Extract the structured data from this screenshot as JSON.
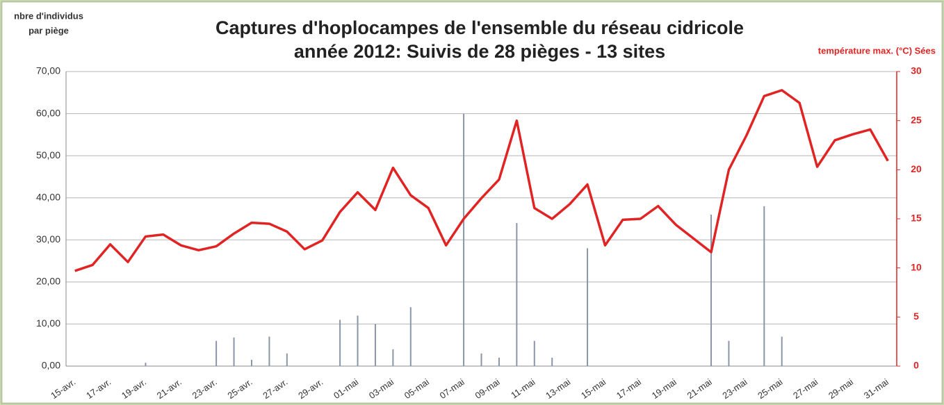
{
  "chart_data": {
    "type": "bar",
    "title": "Captures d'hoplocampes de l'ensemble du réseau cidricole",
    "subtitle": "année 2012:  Suivis de 28 pièges - 13 sites",
    "y_label": [
      "nbre d'individus",
      "par piège"
    ],
    "y2_label": "température max. (°C) Sées",
    "categories": [
      "15-avr.",
      null,
      "17-avr.",
      null,
      "19-avr.",
      null,
      "21-avr.",
      null,
      "23-avr.",
      null,
      "25-avr.",
      null,
      "27-avr.",
      null,
      "29-avr.",
      null,
      "01-mai",
      null,
      "03-mai",
      null,
      "05-mai",
      null,
      "07-mai",
      null,
      "09-mai",
      null,
      "11-mai",
      null,
      "13-mai",
      null,
      "15-mai",
      null,
      "17-mai",
      null,
      "19-mai",
      null,
      "21-mai",
      null,
      "23-mai",
      null,
      "25-mai",
      null,
      "27-mai",
      null,
      "29-mai",
      null,
      "31-mai"
    ],
    "series": [
      {
        "type": "bar",
        "color": "#8a96a8",
        "values": [
          0,
          0,
          0,
          0,
          0.8,
          0,
          0,
          0,
          6,
          6.8,
          1.5,
          7,
          3,
          0,
          0,
          11,
          12,
          10,
          4,
          14,
          0,
          0,
          60,
          3,
          2,
          34,
          6,
          2,
          0,
          28,
          0,
          0,
          0,
          0,
          0,
          0,
          36,
          6,
          0,
          38,
          7,
          0,
          0,
          0,
          0,
          0,
          0
        ]
      },
      {
        "type": "line",
        "axis": "y2",
        "color": "#e02424",
        "values": [
          9.7,
          10.3,
          12.4,
          10.6,
          13.2,
          13.4,
          12.3,
          11.8,
          12.2,
          13.5,
          14.6,
          14.5,
          13.7,
          11.9,
          12.8,
          15.7,
          17.7,
          15.9,
          20.2,
          17.4,
          16.1,
          12.3,
          15.0,
          17.1,
          19.0,
          25.0,
          16.1,
          15.0,
          16.5,
          18.5,
          12.3,
          14.9,
          15.0,
          16.3,
          14.4,
          13.0,
          11.6,
          20.0,
          23.5,
          27.5,
          28.1,
          26.8,
          20.3,
          23.0,
          23.6,
          24.1,
          20.9
        ]
      }
    ],
    "ylim": [
      0,
      70
    ],
    "yticks": [
      {
        "value": 0,
        "label": "0,00"
      },
      {
        "value": 10,
        "label": "10,00"
      },
      {
        "value": 20,
        "label": "20,00"
      },
      {
        "value": 30,
        "label": "30,00"
      },
      {
        "value": 40,
        "label": "40,00"
      },
      {
        "value": 50,
        "label": "50,00"
      },
      {
        "value": 60,
        "label": "60,00"
      },
      {
        "value": 70,
        "label": "70,00"
      }
    ],
    "y2lim": [
      0,
      30
    ],
    "y2ticks": [
      0,
      5,
      10,
      15,
      20,
      25,
      30
    ],
    "y2_color": "#e02424",
    "grid": true
  }
}
